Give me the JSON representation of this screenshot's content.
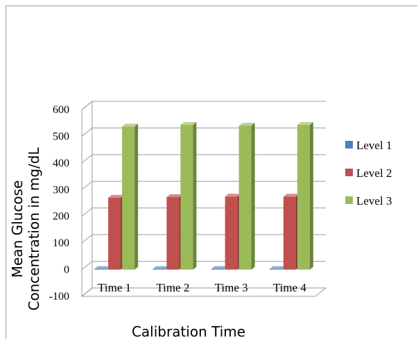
{
  "chart_data": {
    "type": "bar",
    "categories": [
      "Time 1",
      "Time 2",
      "Time 3",
      "Time 4"
    ],
    "series": [
      {
        "name": "Level 1",
        "color": "#4f81bd",
        "values": [
          1,
          1,
          1,
          1
        ]
      },
      {
        "name": "Level 2",
        "color": "#c0504d",
        "values": [
          270,
          272,
          274,
          274
        ]
      },
      {
        "name": "Level 3",
        "color": "#9bbb59",
        "values": [
          537,
          543,
          540,
          543
        ]
      }
    ],
    "title": "",
    "xlabel": "Calibration Time",
    "ylabel": "Mean Glucose Concentration in mg/dL",
    "ylim": [
      -100,
      600
    ],
    "yticks": [
      "-100",
      "0",
      "100",
      "200",
      "300",
      "400",
      "500",
      "600"
    ],
    "grid": true,
    "legend_position": "right",
    "style": "3d-clustered-column"
  }
}
